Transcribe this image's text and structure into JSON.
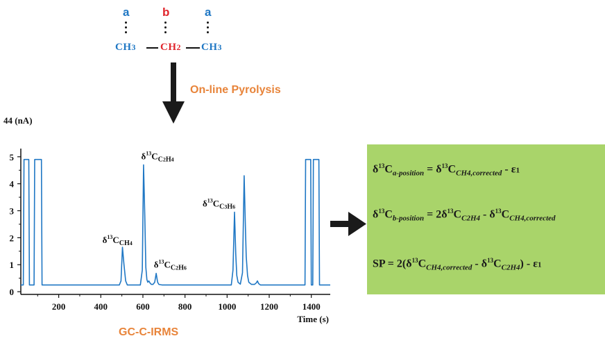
{
  "molecule": {
    "positions": [
      "a",
      "b",
      "a"
    ],
    "groups": [
      {
        "main": "CH",
        "sub": "3"
      },
      {
        "main": "CH",
        "sub": "2"
      },
      {
        "main": "CH",
        "sub": "3"
      }
    ],
    "colors": {
      "a": "#1f77c4",
      "b": "#e0262d"
    }
  },
  "process_label": "On-line Pyrolysis",
  "instrument_label": "GC-C-IRMS",
  "chart_data": {
    "type": "line",
    "ylabel": "44 (nA)",
    "xlabel": "Time (s)",
    "xlim": [
      20,
      1490
    ],
    "ylim": [
      -0.1,
      5.2
    ],
    "xticks": [
      200,
      400,
      600,
      800,
      1000,
      1200,
      1400
    ],
    "yticks": [
      0,
      1,
      2,
      3,
      4,
      5
    ],
    "series": [
      {
        "color": "#1f77c4",
        "x": [
          20,
          32,
          35,
          58,
          61,
          83,
          86,
          118,
          121,
          488,
          496,
          503,
          510,
          518,
          526,
          588,
          597,
          603,
          609,
          614,
          619,
          623,
          628,
          634,
          640,
          648,
          656,
          663,
          670,
          676,
          690,
          1020,
          1028,
          1035,
          1041,
          1046,
          1052,
          1063,
          1073,
          1081,
          1087,
          1091,
          1097,
          1103,
          1116,
          1130,
          1139,
          1144,
          1150,
          1158,
          1170,
          1370,
          1373,
          1397,
          1400,
          1407,
          1410,
          1436,
          1439,
          1490
        ],
        "y": [
          0.25,
          0.25,
          4.9,
          4.9,
          0.25,
          0.25,
          4.9,
          4.9,
          0.25,
          0.25,
          0.4,
          1.65,
          1.0,
          0.4,
          0.25,
          0.25,
          0.8,
          4.7,
          2.8,
          0.9,
          0.45,
          0.35,
          0.4,
          0.32,
          0.27,
          0.27,
          0.35,
          0.68,
          0.35,
          0.27,
          0.25,
          0.25,
          0.8,
          2.95,
          1.4,
          0.6,
          0.35,
          0.28,
          0.7,
          4.3,
          2.4,
          1.3,
          0.6,
          0.35,
          0.27,
          0.27,
          0.33,
          0.4,
          0.3,
          0.25,
          0.25,
          0.25,
          4.9,
          4.9,
          0.25,
          0.25,
          4.9,
          4.9,
          0.25,
          0.25
        ]
      }
    ],
    "annotations": [
      {
        "species": "CH",
        "species_sub": "4",
        "x": 500,
        "y": 1.65
      },
      {
        "species": "C",
        "species_sub": "2",
        "species_rest": "H",
        "species_sub2": "4",
        "x": 605,
        "y": 4.7
      },
      {
        "species": "C",
        "species_sub": "2",
        "species_rest": "H",
        "species_sub2": "6",
        "x": 665,
        "y": 0.68
      },
      {
        "species": "C",
        "species_sub": "3",
        "species_rest": "H",
        "species_sub2": "6",
        "x": 1035,
        "y": 2.95
      }
    ]
  },
  "equations": {
    "eq1": {
      "delta": "δ",
      "iso": "13",
      "C": "C",
      "lhs_sub": "a-position",
      "eqsign": " = ",
      "t1_sub": "CH4,corrected",
      "minus": " - ",
      "eps": "ε",
      "eps_sub": "1"
    },
    "eq2": {
      "lhs_sub": "b-position",
      "coef": "2",
      "t1_sub": "C2H4",
      "t2_sub": "CH4,corrected"
    },
    "eq3": {
      "lhs": "SP",
      "rhs_open": " = 2(",
      "t1_sub": "CH4,corrected",
      "t2_sub": "C2H4",
      "rhs_close": ")",
      "eps": "ε",
      "eps_sub": "1"
    }
  }
}
